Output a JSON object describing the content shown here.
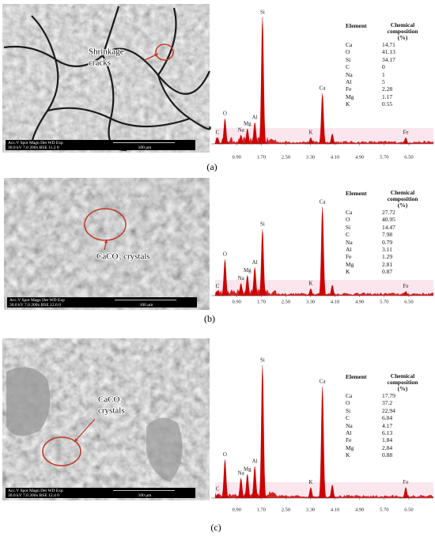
{
  "panels": [
    {
      "label": "(a)",
      "sem": {
        "annotation": [
          "Shrinkage",
          "cracks"
        ],
        "info_header": "Acc.V  Spot Magn   Det  WD  Exp",
        "info_values": "30.0 kV 7.0  200x    BSE 11.2  0",
        "scale_bar": "100 μm"
      },
      "table": {
        "headers": [
          "Element",
          "Chemical composition (%)"
        ],
        "rows": [
          [
            "Ca",
            14.71
          ],
          [
            "O",
            41.13
          ],
          [
            "Si",
            34.17
          ],
          [
            "C",
            0
          ],
          [
            "Na",
            1
          ],
          [
            "Al",
            5
          ],
          [
            "Fe",
            2.28
          ],
          [
            "Mg",
            1.17
          ],
          [
            "K",
            0.55
          ]
        ]
      }
    },
    {
      "label": "(b)",
      "sem": {
        "annotation": [
          "CaCO₃ crystals"
        ],
        "info_header": "Acc.V  Spot Magn   Det  WD  Exp",
        "info_values": "30.0 kV 7.0  200x    BSE 12.6  0",
        "scale_bar": "100 μm"
      },
      "table": {
        "headers": [
          "Element",
          "Chemical composition (%)"
        ],
        "rows": [
          [
            "Ca",
            27.72
          ],
          [
            "O",
            40.95
          ],
          [
            "Si",
            14.47
          ],
          [
            "C",
            7.98
          ],
          [
            "Na",
            0.79
          ],
          [
            "Al",
            3.11
          ],
          [
            "Fe",
            1.29
          ],
          [
            "Mg",
            2.81
          ],
          [
            "K",
            0.87
          ]
        ]
      }
    },
    {
      "label": "(c)",
      "sem": {
        "annotation": [
          "CaCO₃",
          "crystals"
        ],
        "info_header": "Acc.V  Spot Magn   Det  WD  Exp",
        "info_values": "30.0 kV 7.0  200x    BSE 12.4  0",
        "scale_bar": "100 μm"
      },
      "table": {
        "headers": [
          "Element",
          "Chemical composition (%)"
        ],
        "rows": [
          [
            "Ca",
            17.79
          ],
          [
            "O",
            37.2
          ],
          [
            "Si",
            22.94
          ],
          [
            "C",
            6.04
          ],
          [
            "Na",
            4.17
          ],
          [
            "Al",
            6.13
          ],
          [
            "Fe",
            1.84
          ],
          [
            "Mg",
            2.84
          ],
          [
            "K",
            0.88
          ]
        ]
      }
    }
  ],
  "chart_data": [
    {
      "type": "spectrum",
      "color": "#d10000",
      "xlim": [
        0.2,
        7.3
      ],
      "ylim": [
        0,
        100
      ],
      "xticks": [
        {
          "value": 0.9,
          "label": "0.90"
        },
        {
          "value": 1.7,
          "label": "1.70"
        },
        {
          "value": 2.5,
          "label": "2.50"
        },
        {
          "value": 3.3,
          "label": "3.30"
        },
        {
          "value": 4.1,
          "label": "4.10"
        },
        {
          "value": 4.9,
          "label": "4.90"
        },
        {
          "value": 5.7,
          "label": "5.70"
        },
        {
          "value": 6.5,
          "label": "6.50"
        }
      ],
      "labels": [
        "C",
        "O",
        "Na",
        "Mg",
        "Al",
        "Si",
        "K",
        "Ca",
        null,
        "Fe"
      ],
      "x": [
        0.28,
        0.52,
        1.04,
        1.25,
        1.49,
        1.74,
        3.31,
        3.69,
        4.01,
        6.4
      ],
      "values": [
        5,
        20,
        7,
        12,
        17,
        100,
        5,
        40,
        8,
        5
      ]
    },
    {
      "type": "spectrum",
      "color": "#d10000",
      "xlim": [
        0.2,
        7.3
      ],
      "ylim": [
        0,
        100
      ],
      "xticks": [
        {
          "value": 0.9,
          "label": "0.90"
        },
        {
          "value": 1.7,
          "label": "1.70"
        },
        {
          "value": 2.5,
          "label": "2.50"
        },
        {
          "value": 3.3,
          "label": "3.30"
        },
        {
          "value": 4.1,
          "label": "4.10"
        },
        {
          "value": 4.9,
          "label": "4.90"
        },
        {
          "value": 5.7,
          "label": "5.70"
        },
        {
          "value": 6.5,
          "label": "6.50"
        }
      ],
      "labels": [
        "C",
        "O",
        "Na",
        "Mg",
        "Al",
        "Si",
        "K",
        "Ca",
        null,
        "Fe"
      ],
      "x": [
        0.28,
        0.52,
        1.04,
        1.25,
        1.49,
        1.74,
        3.31,
        3.69,
        4.01,
        6.4
      ],
      "values": [
        5,
        41,
        14,
        23,
        32,
        75,
        8,
        100,
        12,
        5
      ]
    },
    {
      "type": "spectrum",
      "color": "#d10000",
      "xlim": [
        0.2,
        7.3
      ],
      "ylim": [
        0,
        100
      ],
      "xticks": [
        {
          "value": 0.9,
          "label": "0.90"
        },
        {
          "value": 1.7,
          "label": "1.70"
        },
        {
          "value": 2.5,
          "label": "2.50"
        },
        {
          "value": 3.3,
          "label": "3.30"
        },
        {
          "value": 4.1,
          "label": "4.10"
        },
        {
          "value": 4.9,
          "label": "4.90"
        },
        {
          "value": 5.7,
          "label": "5.70"
        },
        {
          "value": 6.5,
          "label": "6.50"
        }
      ],
      "labels": [
        "C",
        "O",
        "Na",
        "Mg",
        "Al",
        "Si",
        "K",
        "Ca",
        null,
        "Fe"
      ],
      "x": [
        0.28,
        0.52,
        1.04,
        1.25,
        1.49,
        1.74,
        3.31,
        3.69,
        4.01,
        6.4
      ],
      "values": [
        3,
        29,
        15,
        18,
        24,
        100,
        8,
        84,
        10,
        8
      ]
    }
  ]
}
